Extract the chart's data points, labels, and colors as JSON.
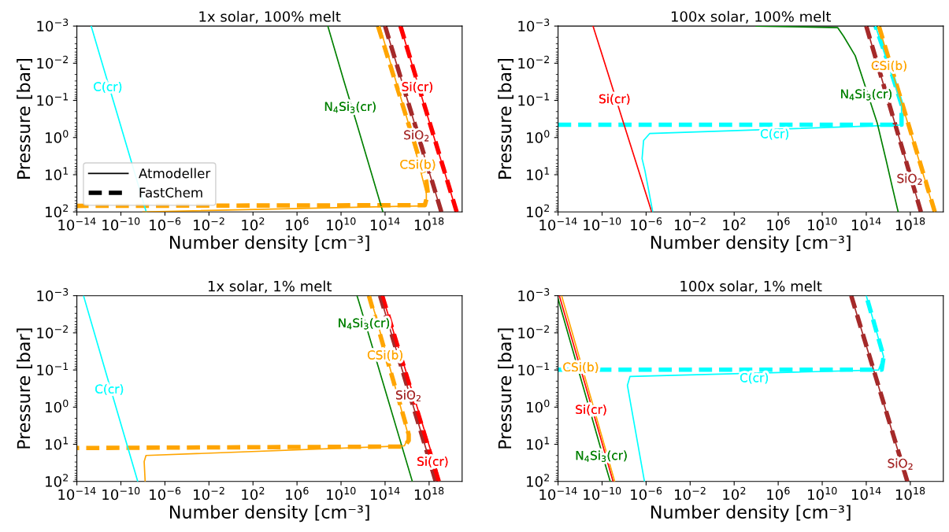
{
  "chart_data": [
    {
      "type": "line",
      "title": "1x solar, 100% melt",
      "xlabel": "Number density [cm⁻³]",
      "ylabel": "Pressure [bar]",
      "log": "xy",
      "grid": false,
      "legend": "bottom left",
      "xlim": [
        1e-14,
        1e+21
      ],
      "ylim": [
        100,
        0.001
      ],
      "xticks": [
        {
          "value": 1e-14,
          "label": "10$^{−14}$"
        },
        {
          "value": 1e-10,
          "label": "10$^{−10}$"
        },
        {
          "value": 1e-06,
          "label": "10$^{−6}$"
        },
        {
          "value": 0.01,
          "label": "10$^{−2}$"
        },
        {
          "value": 100,
          "label": "10$^{2}$"
        },
        {
          "value": 1000000.0,
          "label": "10$^{6}$"
        },
        {
          "value": 10000000000.0,
          "label": "10$^{10}$"
        },
        {
          "value": 100000000000000.0,
          "label": "10$^{14}$"
        },
        {
          "value": 1e+18,
          "label": "10$^{18}$"
        }
      ],
      "yticks": [
        {
          "value": 0.001,
          "label": "10$^{−3}$"
        },
        {
          "value": 0.01,
          "label": "10$^{−2}$"
        },
        {
          "value": 0.1,
          "label": "10$^{−1}$"
        },
        {
          "value": 1,
          "label": "10$^{0}$"
        },
        {
          "value": 10,
          "label": "10$^{1}$"
        },
        {
          "value": 100,
          "label": "10$^{2}$"
        }
      ],
      "series": [
        {
          "name": "Atmodeller",
          "color": "#000000",
          "line_style": "solid"
        },
        {
          "name": "FastChem",
          "color": "#000000",
          "line_style": "dashed"
        },
        {
          "color": "#ffa500",
          "line_style": "dashed",
          "x": [
            23000000000000.0,
            5.6e+17,
            7.8e+17,
            4.1e+17,
            1e-14
          ],
          "values": [
            0.001,
            15,
            32,
            66,
            69
          ]
        },
        {
          "color": "#a52a2a",
          "line_style": "dashed",
          "x": [
            100000000000000.0,
            1.3e+19
          ],
          "values": [
            0.001,
            100
          ]
        },
        {
          "color": "#ff0000",
          "line_style": "dashed",
          "x": [
            2500000000000000.0,
            3.2e+20
          ],
          "values": [
            0.001,
            100
          ]
        },
        {
          "name": "C(cr)",
          "color": "#00ffff",
          "line_style": "solid",
          "x": [
            2e-13,
            1.6e-12,
            2.6e-11,
            2e-08
          ],
          "values": [
            0.001,
            0.0081,
            0.13,
            100
          ]
        },
        {
          "name": "N$_{4}$Si$_{3}$(cr)",
          "color": "#008000",
          "line_style": "solid",
          "x": [
            630000000.0,
            17000000000.0,
            280000000000.0,
            63000000000000.0
          ],
          "values": [
            0.001,
            0.028,
            0.44,
            100
          ]
        },
        {
          "name": "CSi(b)",
          "color": "#ffa500",
          "line_style": "solid",
          "x": [
            32000000000000.0,
            250000000000000.0,
            2000000000000000.0,
            1.6e+16,
            5.6e+17,
            5.6e+17,
            3e+17,
            1e-08
          ],
          "values": [
            0.001,
            0.0079,
            0.063,
            0.5,
            32,
            58,
            69,
            100
          ]
        },
        {
          "name": "SiO$_{2}$",
          "color": "#a52a2a",
          "line_style": "solid",
          "x": [
            100000000000000.0,
            1.8e+16,
            3e+17,
            1.3e+19
          ],
          "values": [
            0.001,
            0.16,
            2.6,
            100
          ]
        },
        {
          "name": "Si(cr)",
          "color": "#ff0000",
          "line_style": "solid",
          "x": [
            2500000000000000.0,
            2.1e+16,
            3.5e+17,
            3.2e+20
          ],
          "values": [
            0.001,
            0.0081,
            0.13,
            100
          ]
        }
      ]
    },
    {
      "type": "line",
      "title": "100x solar, 100% melt",
      "xlabel": "Number density [cm⁻³]",
      "ylabel": "Pressure [bar]",
      "log": "xy",
      "grid": false,
      "xlim": [
        1e-14,
        1e+21
      ],
      "ylim": [
        100,
        0.001
      ],
      "xticks": [
        {
          "value": 1e-14,
          "label": "10$^{−14}$"
        },
        {
          "value": 1e-10,
          "label": "10$^{−10}$"
        },
        {
          "value": 1e-06,
          "label": "10$^{−6}$"
        },
        {
          "value": 0.01,
          "label": "10$^{−2}$"
        },
        {
          "value": 100,
          "label": "10$^{2}$"
        },
        {
          "value": 1000000.0,
          "label": "10$^{6}$"
        },
        {
          "value": 10000000000.0,
          "label": "10$^{10}$"
        },
        {
          "value": 100000000000000.0,
          "label": "10$^{14}$"
        },
        {
          "value": 1e+18,
          "label": "10$^{18}$"
        }
      ],
      "yticks": [
        {
          "value": 0.001,
          "label": "10$^{−3}$"
        },
        {
          "value": 0.01,
          "label": "10$^{−2}$"
        },
        {
          "value": 0.1,
          "label": "10$^{−1}$"
        },
        {
          "value": 1,
          "label": "10$^{0}$"
        },
        {
          "value": 10,
          "label": "10$^{1}$"
        },
        {
          "value": 100,
          "label": "10$^{2}$"
        }
      ],
      "series": [
        {
          "color": "#00ffff",
          "line_style": "dashed",
          "x": [
            1e-14,
            1.6e+17,
            1.6e+17,
            1.6e+16,
            690000000000000.0
          ],
          "values": [
            0.45,
            0.45,
            0.13,
            0.015,
            0.001
          ]
        },
        {
          "color": "#a52a2a",
          "line_style": "dashed",
          "x": [
            100000000000000.0,
            9.3e+18
          ],
          "values": [
            0.001,
            100
          ]
        },
        {
          "color": "#ffa500",
          "line_style": "dashed",
          "x": [
            1400000000000000.0,
            1.7e+20
          ],
          "values": [
            0.001,
            100
          ]
        },
        {
          "name": "Si(cr)",
          "color": "#ff0000",
          "line_style": "solid",
          "x": [
            1.5e-11,
            3.1e-10,
            6e-09,
            3.2e-06
          ],
          "values": [
            0.001,
            0.017,
            0.28,
            100
          ]
        },
        {
          "name": "C(cr)",
          "color": "#00ffff",
          "line_style": "solid",
          "x": [
            4e-06,
            7.9e-07,
            4.3e-07,
            5.9e-07,
            2.1e-06,
            1.1e+17,
            1.6e+17,
            1.6e+17,
            3200000000000000.0,
            690000000000000.0
          ],
          "values": [
            100,
            7.9,
            3.7,
            1.2,
            0.78,
            0.46,
            0.42,
            0.13,
            0.004,
            0.001
          ]
        },
        {
          "name": "N$_{4}$Si$_{3}$(cr)",
          "color": "#008000",
          "line_style": "solid",
          "x": [
            10000.0,
            250000000000.0,
            890000000000.0,
            10000000000000.0,
            1000000000000000.0,
            6300000000000000.0,
            2.2e+16,
            7.9e+16
          ],
          "values": [
            0.001,
            0.0011,
            0.0019,
            0.0063,
            0.41,
            4,
            20,
            100
          ]
        },
        {
          "name": "SiO$_{2}$",
          "color": "#a52a2a",
          "line_style": "solid",
          "x": [
            100000000000000.0,
            2.3e+17,
            3.6e+18,
            9.3e+18
          ],
          "values": [
            0.001,
            2.4,
            38,
            100
          ]
        },
        {
          "name": "CSi(b)",
          "color": "#ffa500",
          "line_style": "solid",
          "x": [
            1300000000000000.0,
            3000000000000000.0,
            4.8e+16,
            1.6e+20
          ],
          "values": [
            0.001,
            0.0022,
            0.035,
            100
          ]
        }
      ]
    },
    {
      "type": "line",
      "title": "1x solar, 1% melt",
      "xlabel": "Number density [cm⁻³]",
      "ylabel": "Pressure [bar]",
      "log": "xy",
      "grid": false,
      "xlim": [
        1e-14,
        1e+21
      ],
      "ylim": [
        100,
        0.001
      ],
      "xticks": [
        {
          "value": 1e-14,
          "label": "10$^{−14}$"
        },
        {
          "value": 1e-10,
          "label": "10$^{−10}$"
        },
        {
          "value": 1e-06,
          "label": "10$^{−6}$"
        },
        {
          "value": 0.01,
          "label": "10$^{−2}$"
        },
        {
          "value": 100,
          "label": "10$^{2}$"
        },
        {
          "value": 1000000.0,
          "label": "10$^{6}$"
        },
        {
          "value": 10000000000.0,
          "label": "10$^{10}$"
        },
        {
          "value": 100000000000000.0,
          "label": "10$^{14}$"
        },
        {
          "value": 1e+18,
          "label": "10$^{18}$"
        }
      ],
      "yticks": [
        {
          "value": 0.001,
          "label": "10$^{−3}$"
        },
        {
          "value": 0.01,
          "label": "10$^{−2}$"
        },
        {
          "value": 0.1,
          "label": "10$^{−1}$"
        },
        {
          "value": 1,
          "label": "10$^{0}$"
        },
        {
          "value": 10,
          "label": "10$^{1}$"
        },
        {
          "value": 100,
          "label": "10$^{2}$"
        }
      ],
      "series": [
        {
          "color": "#ffa500",
          "line_style": "dashed",
          "x": [
            3400000000000.0,
            1.4e+16,
            1.4e+16,
            5400000000000000.0,
            1e-14
          ],
          "values": [
            0.001,
            5.4,
            7.9,
            11.5,
            12.6
          ]
        },
        {
          "color": "#a52a2a",
          "line_style": "dashed",
          "x": [
            35000000000000.0,
            4e+18
          ],
          "values": [
            0.001,
            100
          ]
        },
        {
          "color": "#ff0000",
          "line_style": "dashed",
          "x": [
            55000000000000.0,
            7.6e+18
          ],
          "values": [
            0.001,
            100
          ]
        },
        {
          "name": "C(cr)",
          "color": "#00ffff",
          "line_style": "solid",
          "x": [
            4e-14,
            2.3e-12,
            3.5e-11,
            3.4e-09
          ],
          "values": [
            0.001,
            0.062,
            0.98,
            100
          ]
        },
        {
          "name": "N$_{4}$Si$_{3}$(cr)",
          "color": "#008000",
          "line_style": "solid",
          "x": [
            280000000000.0,
            370000000000.0,
            3800000000000.0,
            3e+16
          ],
          "values": [
            0.001,
            0.0013,
            0.013,
            100
          ]
        },
        {
          "name": "CSi(b)",
          "color": "#ffa500",
          "line_style": "solid",
          "x": [
            4400000000000.0,
            5400000000000.0,
            6600000000000.0,
            8300000000000.0,
            10000000000000.0,
            13000000000000.0,
            810000000000000.0,
            1.4e+16,
            5600000000000000.0,
            1.9e-08,
            1.3e-08,
            1.6e-08
          ],
          "values": [
            0.001,
            0.0013,
            0.0016,
            0.002,
            0.0025,
            0.0032,
            0.28,
            6.3,
            11,
            20,
            29,
            100
          ]
        },
        {
          "name": "SiO$_{2}$",
          "color": "#a52a2a",
          "line_style": "solid",
          "x": [
            35000000000000.0,
            3300000000000000.0,
            5.5e+16,
            4e+18
          ],
          "values": [
            0.001,
            0.091,
            1.4,
            100
          ]
        },
        {
          "name": "Si(cr)",
          "color": "#ff0000",
          "line_style": "solid",
          "x": [
            55000000000000.0,
            8.1e+17,
            5.5e+18,
            7.6e+18
          ],
          "values": [
            0.001,
            8.7,
            55,
            100
          ]
        }
      ]
    },
    {
      "type": "line",
      "title": "100x solar, 1% melt",
      "xlabel": "Number density [cm⁻³]",
      "ylabel": "Pressure [bar]",
      "log": "xy",
      "grid": false,
      "xlim": [
        1e-14,
        1e+21
      ],
      "ylim": [
        100,
        0.001
      ],
      "xticks": [
        {
          "value": 1e-14,
          "label": "10$^{−14}$"
        },
        {
          "value": 1e-10,
          "label": "10$^{−10}$"
        },
        {
          "value": 1e-06,
          "label": "10$^{−6}$"
        },
        {
          "value": 0.01,
          "label": "10$^{−2}$"
        },
        {
          "value": 100,
          "label": "10$^{2}$"
        },
        {
          "value": 1000000.0,
          "label": "10$^{6}$"
        },
        {
          "value": 10000000000.0,
          "label": "10$^{10}$"
        },
        {
          "value": 100000000000000.0,
          "label": "10$^{14}$"
        },
        {
          "value": 1e+18,
          "label": "10$^{18}$"
        }
      ],
      "yticks": [
        {
          "value": 0.001,
          "label": "10$^{−3}$"
        },
        {
          "value": 0.01,
          "label": "10$^{−2}$"
        },
        {
          "value": 0.1,
          "label": "10$^{−1}$"
        },
        {
          "value": 1,
          "label": "10$^{0}$"
        },
        {
          "value": 10,
          "label": "10$^{1}$"
        },
        {
          "value": 100,
          "label": "10$^{2}$"
        }
      ],
      "series": [
        {
          "color": "#00ffff",
          "line_style": "dashed",
          "x": [
            1e-14,
            2500000000000000.0,
            3800000000000000.0,
            100000000000000.0
          ],
          "values": [
            0.098,
            0.098,
            0.044,
            0.001
          ]
        },
        {
          "color": "#a52a2a",
          "line_style": "dashed",
          "x": [
            4300000000000.0,
            5.4e+17
          ],
          "values": [
            0.001,
            100
          ]
        },
        {
          "name": "N$_{4}$Si$_{3}$(cr)",
          "color": "#008000",
          "line_style": "solid",
          "x": [
            1e-14,
            3.6e-11,
            2.1e-10,
            5.5e-10
          ],
          "values": [
            0.0012,
            6,
            38,
            100
          ]
        },
        {
          "name": "Si(cr)",
          "color": "#ff0000",
          "line_style": "solid",
          "x": [
            1.3e-14,
            2.6e-12,
            3.9e-11,
            1e-09
          ],
          "values": [
            0.001,
            0.22,
            3.5,
            100
          ]
        },
        {
          "name": "CSi(b)",
          "color": "#ffa500",
          "line_style": "solid",
          "x": [
            2.1e-14,
            3.1e-13,
            4.4e-12,
            1.4e-09
          ],
          "values": [
            0.001,
            0.016,
            0.25,
            100
          ]
        },
        {
          "name": "SiO$_{2}$",
          "color": "#a52a2a",
          "line_style": "solid",
          "x": [
            4300000000000.0,
            5.6e+16,
            2.9e+17,
            5.4e+17
          ],
          "values": [
            0.001,
            11,
            55,
            100
          ]
        },
        {
          "name": "C(cr)",
          "color": "#00ffff",
          "line_style": "solid",
          "x": [
            7.1e-07,
            2e-08,
            3.4e-08,
            1300000000000000.0,
            3800000000000000.0,
            100000000000000.0
          ],
          "values": [
            100,
            0.26,
            0.15,
            0.1,
            0.044,
            0.001
          ]
        }
      ]
    }
  ]
}
